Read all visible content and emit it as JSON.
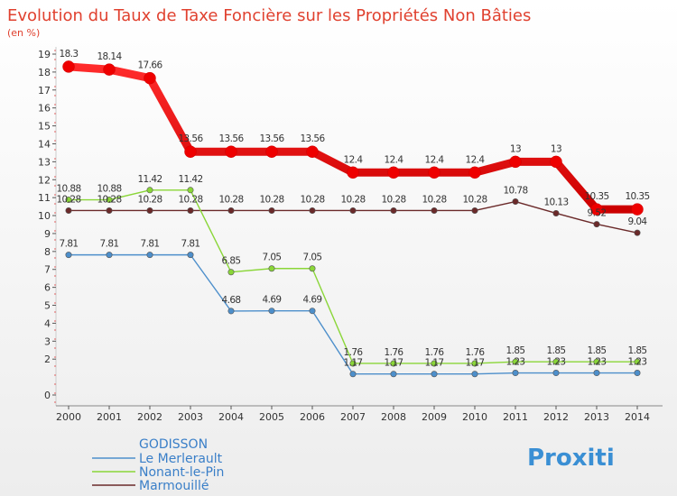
{
  "chart_data": {
    "type": "line",
    "title": "Evolution du Taux de Taxe Foncière sur les Propriétés Non Bâties",
    "subtitle": "(en %)",
    "xlabel": "",
    "ylabel": "",
    "ylim": [
      0,
      19
    ],
    "y_ticks": [
      0,
      2,
      3,
      4,
      5,
      6,
      7,
      8,
      9,
      10,
      11,
      12,
      13,
      14,
      15,
      16,
      17,
      18,
      19
    ],
    "categories": [
      "2000",
      "2001",
      "2002",
      "2003",
      "2004",
      "2005",
      "2006",
      "2007",
      "2008",
      "2009",
      "2010",
      "2011",
      "2012",
      "2013",
      "2014"
    ],
    "series": [
      {
        "name": "GODISSON",
        "color": "#ee0000",
        "values": [
          18.3,
          18.14,
          17.66,
          13.56,
          13.56,
          13.56,
          13.56,
          12.4,
          12.4,
          12.4,
          12.4,
          13,
          13,
          10.35,
          10.35
        ],
        "labels": [
          "18.3",
          "18.14",
          "17.66",
          "13.56",
          "13.56",
          "13.56",
          "13.56",
          "12.4",
          "12.4",
          "12.4",
          "12.4",
          "13",
          "13",
          "10.35",
          "10.35"
        ]
      },
      {
        "name": "Le Merlerault",
        "color": "#4d8fcb",
        "values": [
          7.81,
          7.81,
          7.81,
          7.81,
          4.68,
          4.69,
          4.69,
          1.17,
          1.17,
          1.17,
          1.17,
          1.23,
          1.23,
          1.23,
          1.23
        ],
        "labels": [
          "7.81",
          "7.81",
          "7.81",
          "7.81",
          "4.68",
          "4.69",
          "4.69",
          "1.17",
          "1.17",
          "1.17",
          "1.17",
          "1.23",
          "1.23",
          "1.23",
          "1.23"
        ]
      },
      {
        "name": "Nonant-le-Pin",
        "color": "#8ad638",
        "values": [
          10.88,
          10.88,
          11.42,
          11.42,
          6.85,
          7.05,
          7.05,
          1.76,
          1.76,
          1.76,
          1.76,
          1.85,
          1.85,
          1.85,
          1.85
        ],
        "labels": [
          "10.88",
          "10.88",
          "11.42",
          "11.42",
          "6.85",
          "7.05",
          "7.05",
          "1.76",
          "1.76",
          "1.76",
          "1.76",
          "1.85",
          "1.85",
          "1.85",
          "1.85"
        ]
      },
      {
        "name": "Marmouillé",
        "color": "#6b2a2a",
        "values": [
          10.28,
          10.28,
          10.28,
          10.28,
          10.28,
          10.28,
          10.28,
          10.28,
          10.28,
          10.28,
          10.28,
          10.78,
          10.13,
          9.52,
          9.04
        ],
        "labels": [
          "10.28",
          "10.28",
          "10.28",
          "10.28",
          "10.28",
          "10.28",
          "10.28",
          "10.28",
          "10.28",
          "10.28",
          "10.28",
          "10.78",
          "10.13",
          "9.52",
          "9.04"
        ]
      }
    ],
    "legend": {
      "placement": "bottom-left",
      "entries": [
        "GODISSON",
        "Le Merlerault",
        "Nonant-le-Pin",
        "Marmouillé"
      ]
    },
    "grid": false
  },
  "logo": {
    "text": "Proxiti"
  }
}
